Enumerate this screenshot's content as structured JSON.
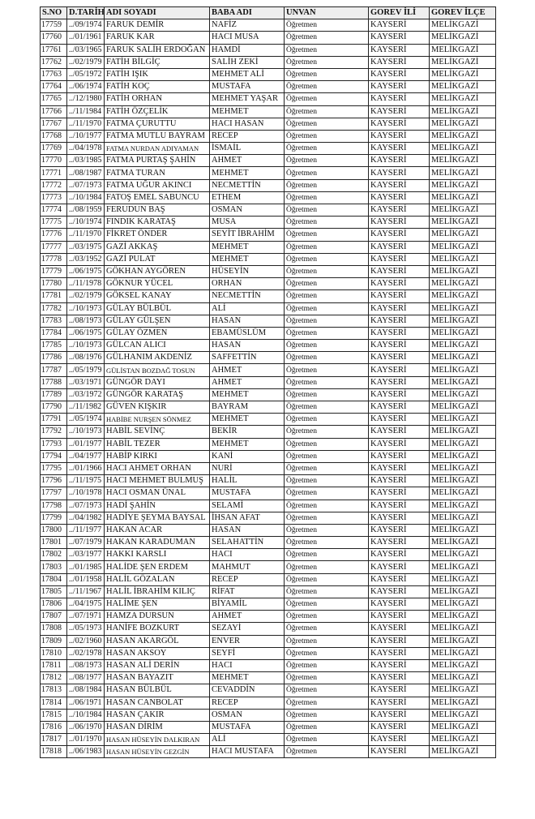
{
  "headers": [
    "S.NO",
    "D.TARİHİ",
    "ADI SOYADI",
    "BABA ADI",
    "UNVAN",
    "GOREV İLİ",
    "GOREV İLÇE"
  ],
  "rows": [
    [
      "17759",
      "../09/1974",
      "FARUK DEMİR",
      "NAFİZ",
      "Öğretmen",
      "KAYSERİ",
      "MELİKGAZİ"
    ],
    [
      "17760",
      "../01/1961",
      "FARUK KAR",
      "HACI MUSA",
      "Öğretmen",
      "KAYSERİ",
      "MELİKGAZİ"
    ],
    [
      "17761",
      "../03/1965",
      "FARUK SALİH ERDOĞAN",
      "HAMDİ",
      "Öğretmen",
      "KAYSERİ",
      "MELİKGAZİ"
    ],
    [
      "17762",
      "../02/1979",
      "FATİH BİLGİÇ",
      "SALİH ZEKİ",
      "Öğretmen",
      "KAYSERİ",
      "MELİKGAZİ"
    ],
    [
      "17763",
      "../05/1972",
      "FATİH IŞIK",
      "MEHMET ALİ",
      "Öğretmen",
      "KAYSERİ",
      "MELİKGAZİ"
    ],
    [
      "17764",
      "../06/1974",
      "FATİH KOÇ",
      "MUSTAFA",
      "Öğretmen",
      "KAYSERİ",
      "MELİKGAZİ"
    ],
    [
      "17765",
      "../12/1980",
      "FATİH ORHAN",
      "MEHMET YAŞAR",
      "Öğretmen",
      "KAYSERİ",
      "MELİKGAZİ"
    ],
    [
      "17766",
      "../11/1984",
      "FATİH ÖZÇELİK",
      "MEHMET",
      "Öğretmen",
      "KAYSERİ",
      "MELİKGAZİ"
    ],
    [
      "17767",
      "../11/1970",
      "FATMA ÇURUTTU",
      "HACI HASAN",
      "Öğretmen",
      "KAYSERİ",
      "MELİKGAZİ"
    ],
    [
      "17768",
      "../10/1977",
      "FATMA MUTLU BAYRAM",
      "RECEP",
      "Öğretmen",
      "KAYSERİ",
      "MELİKGAZİ"
    ],
    [
      "17769",
      "../04/1978",
      "FATMA NURDAN ADIYAMAN",
      "İSMAİL",
      "Öğretmen",
      "KAYSERİ",
      "MELİKGAZİ"
    ],
    [
      "17770",
      "../03/1985",
      "FATMA PURTAŞ ŞAHİN",
      "AHMET",
      "Öğretmen",
      "KAYSERİ",
      "MELİKGAZİ"
    ],
    [
      "17771",
      "../08/1987",
      "FATMA TURAN",
      "MEHMET",
      "Öğretmen",
      "KAYSERİ",
      "MELİKGAZİ"
    ],
    [
      "17772",
      "../07/1973",
      "FATMA UĞUR AKINCI",
      "NECMETTİN",
      "Öğretmen",
      "KAYSERİ",
      "MELİKGAZİ"
    ],
    [
      "17773",
      "../10/1984",
      "FATOŞ EMEL SABUNCU",
      "ETHEM",
      "Öğretmen",
      "KAYSERİ",
      "MELİKGAZİ"
    ],
    [
      "17774",
      "../08/1959",
      "FERUDUN BAŞ",
      "OSMAN",
      "Öğretmen",
      "KAYSERİ",
      "MELİKGAZİ"
    ],
    [
      "17775",
      "../10/1974",
      "FINDIK KARATAŞ",
      "MUSA",
      "Öğretmen",
      "KAYSERİ",
      "MELİKGAZİ"
    ],
    [
      "17776",
      "../11/1970",
      "FİKRET ÖNDER",
      "SEYİT İBRAHİM",
      "Öğretmen",
      "KAYSERİ",
      "MELİKGAZİ"
    ],
    [
      "17777",
      "../03/1975",
      "GAZİ AKKAŞ",
      "MEHMET",
      "Öğretmen",
      "KAYSERİ",
      "MELİKGAZİ"
    ],
    [
      "17778",
      "../03/1952",
      "GAZİ PULAT",
      "MEHMET",
      "Öğretmen",
      "KAYSERİ",
      "MELİKGAZİ"
    ],
    [
      "17779",
      "../06/1975",
      "GÖKHAN AYGÖREN",
      "HÜSEYİN",
      "Öğretmen",
      "KAYSERİ",
      "MELİKGAZİ"
    ],
    [
      "17780",
      "../11/1978",
      "GÖKNUR YÜCEL",
      "ORHAN",
      "Öğretmen",
      "KAYSERİ",
      "MELİKGAZİ"
    ],
    [
      "17781",
      "../02/1979",
      "GÖKSEL KANAY",
      "NECMETTİN",
      "Öğretmen",
      "KAYSERİ",
      "MELİKGAZİ"
    ],
    [
      "17782",
      "../10/1973",
      "GÜLAY BÜLBÜL",
      "ALİ",
      "Öğretmen",
      "KAYSERİ",
      "MELİKGAZİ"
    ],
    [
      "17783",
      "../08/1973",
      "GÜLAY GÜLŞEN",
      "HASAN",
      "Öğretmen",
      "KAYSERİ",
      "MELİKGAZİ"
    ],
    [
      "17784",
      "../06/1975",
      "GÜLAY ÖZMEN",
      "EBAMÜSLÜM",
      "Öğretmen",
      "KAYSERİ",
      "MELİKGAZİ"
    ],
    [
      "17785",
      "../10/1973",
      "GÜLCAN ALICI",
      "HASAN",
      "Öğretmen",
      "KAYSERİ",
      "MELİKGAZİ"
    ],
    [
      "17786",
      "../08/1976",
      "GÜLHANIM AKDENİZ",
      "SAFFETTİN",
      "Öğretmen",
      "KAYSERİ",
      "MELİKGAZİ"
    ],
    [
      "17787",
      "../05/1979",
      "GÜLİSTAN BOZDAĞ TOSUN",
      "AHMET",
      "Öğretmen",
      "KAYSERİ",
      "MELİKGAZİ"
    ],
    [
      "17788",
      "../03/1971",
      "GÜNGÖR DAYI",
      "AHMET",
      "Öğretmen",
      "KAYSERİ",
      "MELİKGAZİ"
    ],
    [
      "17789",
      "../03/1972",
      "GÜNGÖR KARATAŞ",
      "MEHMET",
      "Öğretmen",
      "KAYSERİ",
      "MELİKGAZİ"
    ],
    [
      "17790",
      "../11/1982",
      "GÜVEN KIŞKIR",
      "BAYRAM",
      "Öğretmen",
      "KAYSERİ",
      "MELİKGAZİ"
    ],
    [
      "17791",
      "../05/1974",
      "HABİBE NURŞEN SÖNMEZ",
      "MEHMET",
      "Öğretmen",
      "KAYSERİ",
      "MELİKGAZİ"
    ],
    [
      "17792",
      "../10/1973",
      "HABİL SEVİNÇ",
      "BEKİR",
      "Öğretmen",
      "KAYSERİ",
      "MELİKGAZİ"
    ],
    [
      "17793",
      "../01/1977",
      "HABİL TEZER",
      "MEHMET",
      "Öğretmen",
      "KAYSERİ",
      "MELİKGAZİ"
    ],
    [
      "17794",
      "../04/1977",
      "HABİP KIRKI",
      "KANİ",
      "Öğretmen",
      "KAYSERİ",
      "MELİKGAZİ"
    ],
    [
      "17795",
      "../01/1966",
      "HACI AHMET ORHAN",
      "NURİ",
      "Öğretmen",
      "KAYSERİ",
      "MELİKGAZİ"
    ],
    [
      "17796",
      "../11/1975",
      "HACI MEHMET BULMUŞ",
      "HALİL",
      "Öğretmen",
      "KAYSERİ",
      "MELİKGAZİ"
    ],
    [
      "17797",
      "../10/1978",
      "HACI OSMAN ÜNAL",
      "MUSTAFA",
      "Öğretmen",
      "KAYSERİ",
      "MELİKGAZİ"
    ],
    [
      "17798",
      "../07/1973",
      "HADİ ŞAHİN",
      "SELAMİ",
      "Öğretmen",
      "KAYSERİ",
      "MELİKGAZİ"
    ],
    [
      "17799",
      "../04/1982",
      "HADİYE ŞEYMA BAYSAL",
      "İHSAN AFAT",
      "Öğretmen",
      "KAYSERİ",
      "MELİKGAZİ"
    ],
    [
      "17800",
      "../11/1977",
      "HAKAN ACAR",
      "HASAN",
      "Öğretmen",
      "KAYSERİ",
      "MELİKGAZİ"
    ],
    [
      "17801",
      "../07/1979",
      "HAKAN KARADUMAN",
      "SELAHATTİN",
      "Öğretmen",
      "KAYSERİ",
      "MELİKGAZİ"
    ],
    [
      "17802",
      "../03/1977",
      "HAKKI KARSLI",
      "HACI",
      "Öğretmen",
      "KAYSERİ",
      "MELİKGAZİ"
    ],
    [
      "17803",
      "../01/1985",
      "HALİDE ŞEN ERDEM",
      "MAHMUT",
      "Öğretmen",
      "KAYSERİ",
      "MELİKGAZİ"
    ],
    [
      "17804",
      "../01/1958",
      "HALİL GÖZALAN",
      "RECEP",
      "Öğretmen",
      "KAYSERİ",
      "MELİKGAZİ"
    ],
    [
      "17805",
      "../11/1967",
      "HALİL İBRAHİM KILIÇ",
      "RİFAT",
      "Öğretmen",
      "KAYSERİ",
      "MELİKGAZİ"
    ],
    [
      "17806",
      "../04/1975",
      "HALİME ŞEN",
      "BİYAMİL",
      "Öğretmen",
      "KAYSERİ",
      "MELİKGAZİ"
    ],
    [
      "17807",
      "../07/1971",
      "HAMZA DURSUN",
      "AHMET",
      "Öğretmen",
      "KAYSERİ",
      "MELİKGAZİ"
    ],
    [
      "17808",
      "../05/1973",
      "HANİFE BOZKURT",
      "SEZAYİ",
      "Öğretmen",
      "KAYSERİ",
      "MELİKGAZİ"
    ],
    [
      "17809",
      "../02/1960",
      "HASAN AKARGÖL",
      "ENVER",
      "Öğretmen",
      "KAYSERİ",
      "MELİKGAZİ"
    ],
    [
      "17810",
      "../02/1978",
      "HASAN AKSOY",
      "SEYFİ",
      "Öğretmen",
      "KAYSERİ",
      "MELİKGAZİ"
    ],
    [
      "17811",
      "../08/1973",
      "HASAN ALİ DERİN",
      "HACI",
      "Öğretmen",
      "KAYSERİ",
      "MELİKGAZİ"
    ],
    [
      "17812",
      "../08/1977",
      "HASAN BAYAZIT",
      "MEHMET",
      "Öğretmen",
      "KAYSERİ",
      "MELİKGAZİ"
    ],
    [
      "17813",
      "../08/1984",
      "HASAN BÜLBÜL",
      "CEVADDİN",
      "Öğretmen",
      "KAYSERİ",
      "MELİKGAZİ"
    ],
    [
      "17814",
      "../06/1971",
      "HASAN CANBOLAT",
      "RECEP",
      "Öğretmen",
      "KAYSERİ",
      "MELİKGAZİ"
    ],
    [
      "17815",
      "../10/1984",
      "HASAN ÇAKIR",
      "OSMAN",
      "Öğretmen",
      "KAYSERİ",
      "MELİKGAZİ"
    ],
    [
      "17816",
      "../06/1970",
      "HASAN DİRİM",
      "MUSTAFA",
      "Öğretmen",
      "KAYSERİ",
      "MELİKGAZİ"
    ],
    [
      "17817",
      "../01/1970",
      "HASAN HÜSEYİN DALKIRAN",
      "ALİ",
      "Öğretmen",
      "KAYSERİ",
      "MELİKGAZİ"
    ],
    [
      "17818",
      "../06/1983",
      "HASAN HÜSEYİN GEZGİN",
      "HACI MUSTAFA",
      "Öğretmen",
      "KAYSERİ",
      "MELİKGAZİ"
    ]
  ]
}
